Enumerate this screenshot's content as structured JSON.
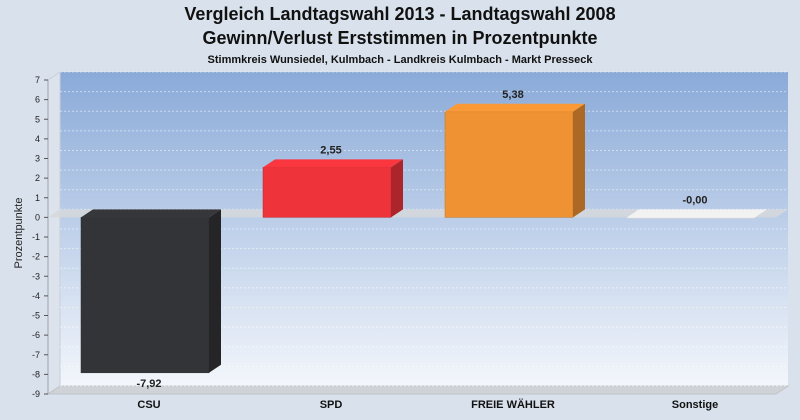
{
  "chart_data": {
    "type": "bar",
    "title": "Vergleich Landtagswahl 2013 - Landtagswahl 2008",
    "title2": "Gewinn/Verlust Erststimmen in Prozentpunkte",
    "subtitle": "Stimmkreis Wunsiedel, Kulmbach - Landkreis Kulmbach - Markt Presseck",
    "xlabel": "",
    "ylabel": "Prozentpunkte",
    "categories": [
      "CSU",
      "SPD",
      "FREIE WÄHLER",
      "Sonstige"
    ],
    "values": [
      -7.92,
      2.55,
      5.38,
      -0.0
    ],
    "value_labels": [
      "-7,92",
      "2,55",
      "5,38",
      "-0,00"
    ],
    "ylim": [
      -9,
      7
    ],
    "yticks": [
      7,
      6,
      5,
      4,
      3,
      2,
      1,
      0,
      -1,
      -2,
      -3,
      -4,
      -5,
      -6,
      -7,
      -8,
      -9
    ],
    "grid": true,
    "colors": [
      "#333438",
      "#ee333b",
      "#ee9233",
      "#ffffff"
    ],
    "plot_background": [
      "#8aaad8",
      "#f3f6fb"
    ]
  }
}
